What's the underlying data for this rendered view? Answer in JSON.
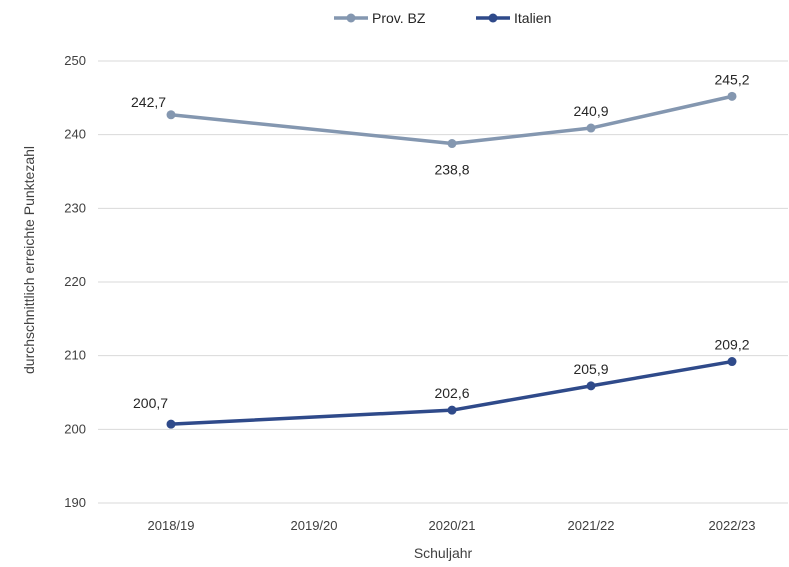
{
  "chart_data": {
    "type": "line",
    "title": "",
    "xlabel": "Schuljahr",
    "ylabel": "durchschnittlich erreichte Punktezahl",
    "categories": [
      "2018/19",
      "2019/20",
      "2020/21",
      "2021/22",
      "2022/23"
    ],
    "ylim": [
      190,
      250
    ],
    "yticks": [
      190,
      200,
      210,
      220,
      230,
      240,
      250
    ],
    "grid": true,
    "legend_position": "top-center",
    "series": [
      {
        "name": "Prov. BZ",
        "color": "#8497b0",
        "values": [
          242.7,
          null,
          238.8,
          240.9,
          245.2
        ],
        "labels": [
          "242,7",
          null,
          "238,8",
          "240,9",
          "245,2"
        ],
        "label_positions": [
          "left",
          null,
          "below",
          "above",
          "above"
        ]
      },
      {
        "name": "Italien",
        "color": "#2f4a8a",
        "values": [
          200.7,
          null,
          202.6,
          205.9,
          209.2
        ],
        "labels": [
          "200,7",
          null,
          "202,6",
          "205,9",
          "209,2"
        ],
        "label_positions": [
          "above",
          null,
          "above",
          "above",
          "above"
        ]
      }
    ]
  }
}
